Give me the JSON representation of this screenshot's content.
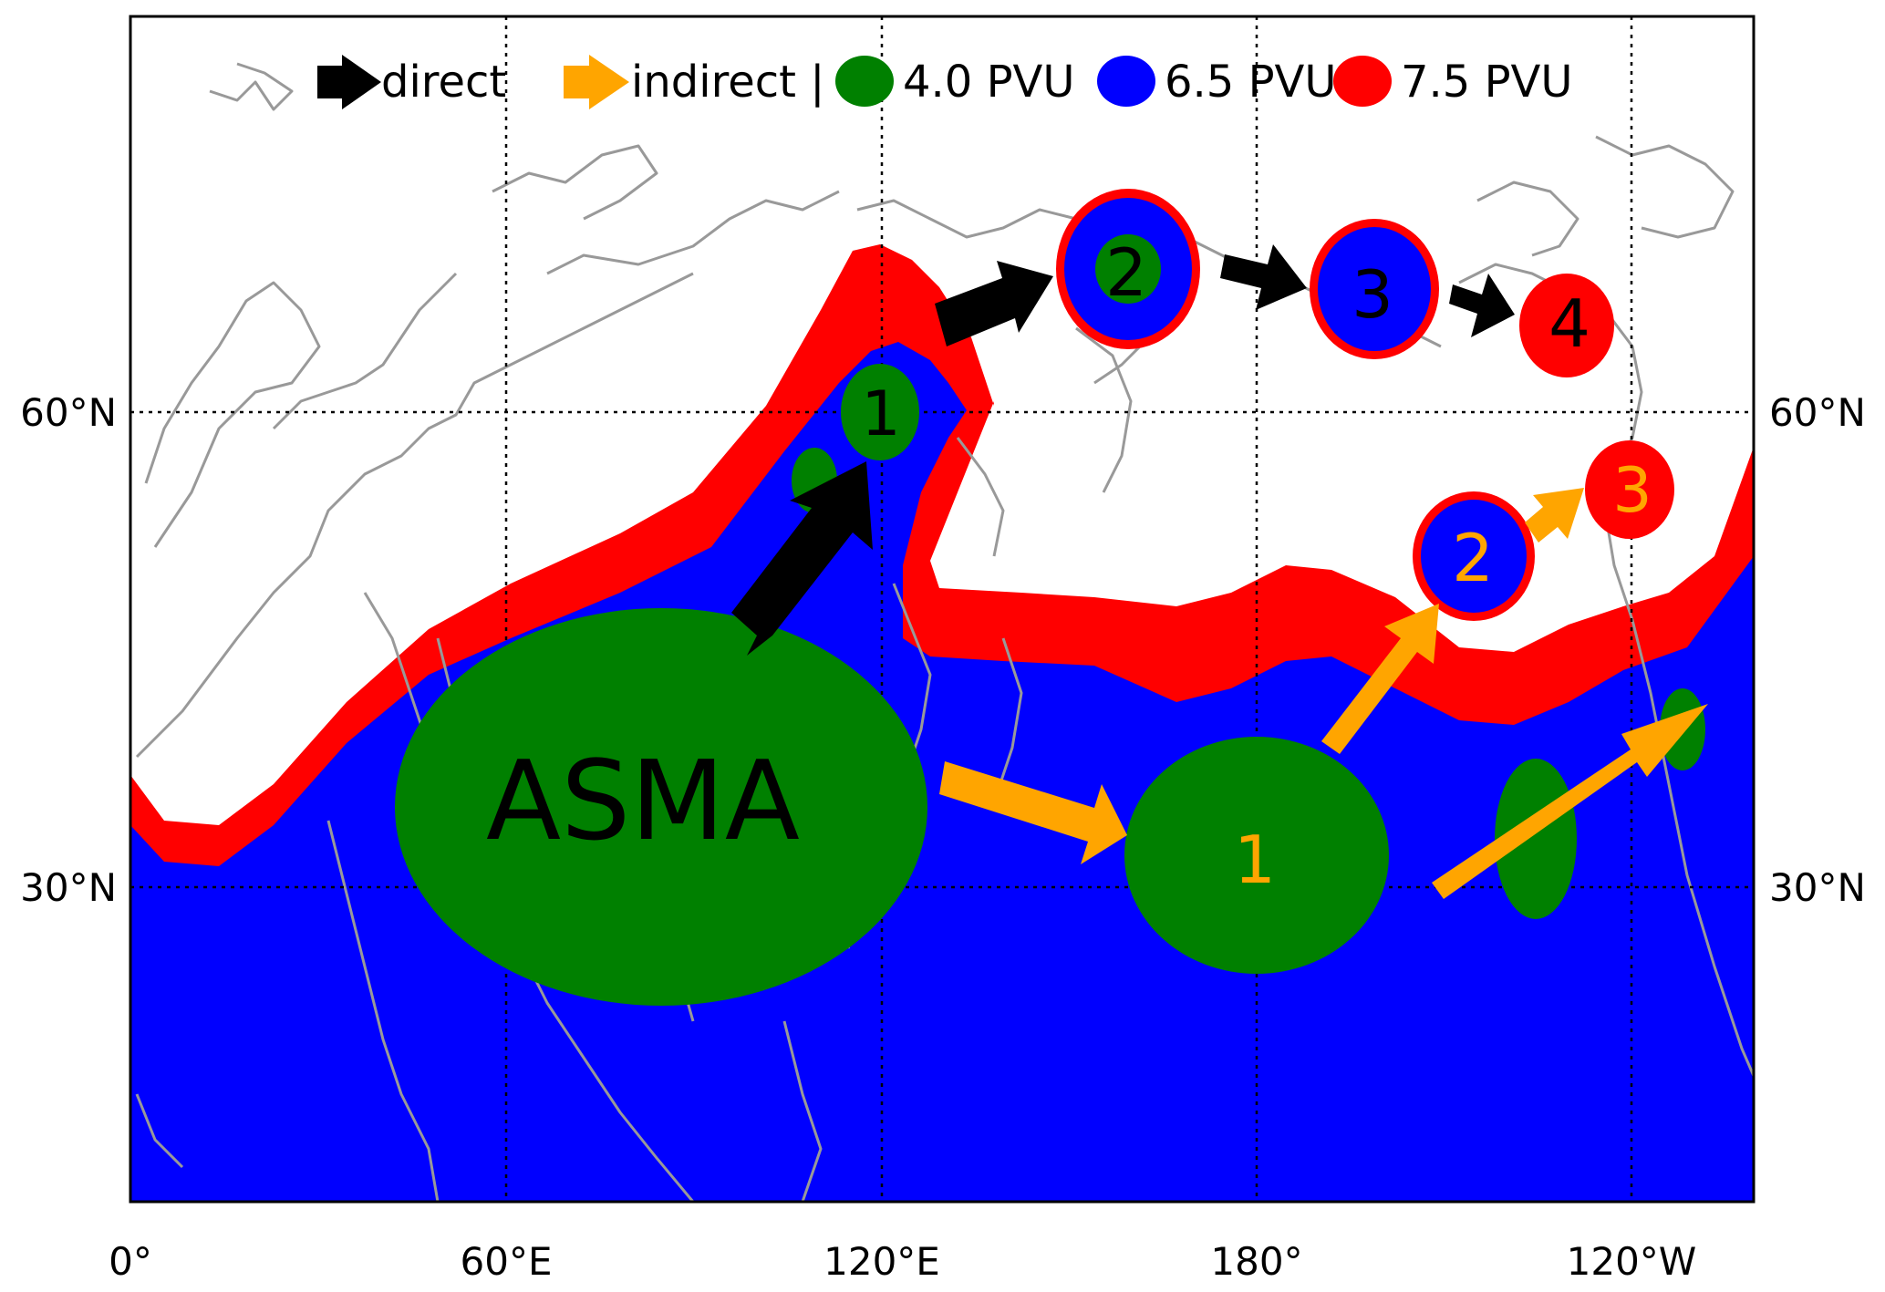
{
  "legend": {
    "direct_label": "direct",
    "indirect_label": "indirect |",
    "pv1_label": "4.0 PVU",
    "pv2_label": "6.5 PVU",
    "pv3_label": "7.5 PVU"
  },
  "axes": {
    "x_ticks": [
      "0°",
      "60°E",
      "120°E",
      "180°",
      "120°W"
    ],
    "y_ticks_left": [
      "60°N",
      "30°N"
    ],
    "y_ticks_right": [
      "60°N",
      "30°N"
    ]
  },
  "labels": {
    "asma": "ASMA",
    "direct_steps": [
      "1",
      "2",
      "3",
      "4"
    ],
    "indirect_steps": [
      "1",
      "2",
      "3"
    ]
  },
  "colors": {
    "pv_4_0": "#008000",
    "pv_6_5": "#0000ff",
    "pv_7_5": "#ff0000",
    "direct_arrow": "#000000",
    "indirect_arrow": "#ffa500",
    "coastline": "#999999",
    "indirect_number": "#ffa500"
  }
}
